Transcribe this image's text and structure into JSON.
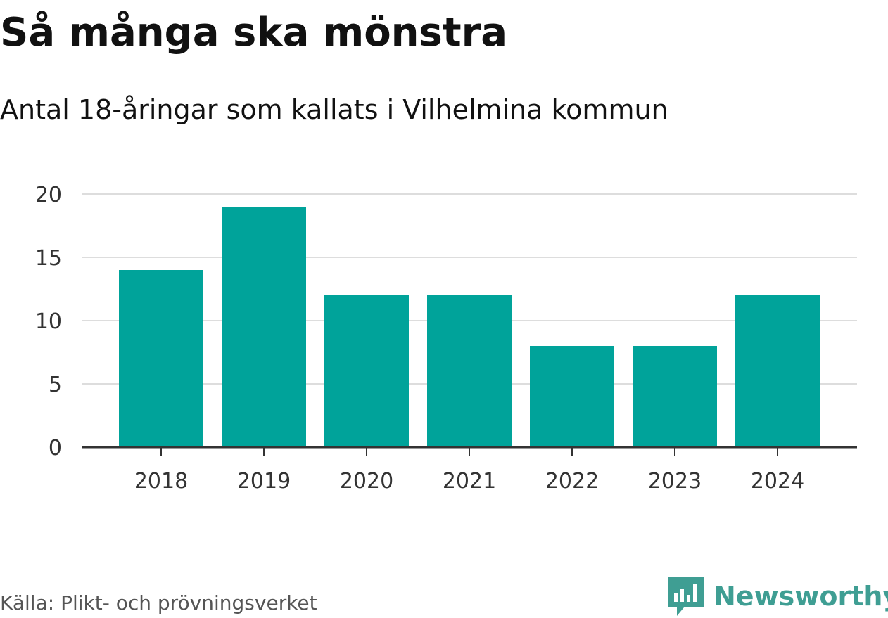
{
  "colors": {
    "bar": "#00a39a",
    "grid": "#dddddd",
    "axis": "#333333",
    "brand": "#3f9e93"
  },
  "brand": {
    "name": "Newsworthy",
    "logo_icon": "newsworthy-bars-icon"
  },
  "source_text": "Källa: Plikt- och prövningsverket",
  "chart_data": {
    "type": "bar",
    "title": "Så många ska mönstra",
    "subtitle": "Antal 18-åringar som kallats i Vilhelmina kommun",
    "categories": [
      "2018",
      "2019",
      "2020",
      "2021",
      "2022",
      "2023",
      "2024"
    ],
    "values": [
      14,
      19,
      12,
      12,
      8,
      8,
      12
    ],
    "ylim": [
      0,
      20
    ],
    "yticks": [
      "0",
      "5",
      "10",
      "15",
      "20"
    ],
    "xlabel": "",
    "ylabel": "",
    "grid": true,
    "legend": "none"
  }
}
